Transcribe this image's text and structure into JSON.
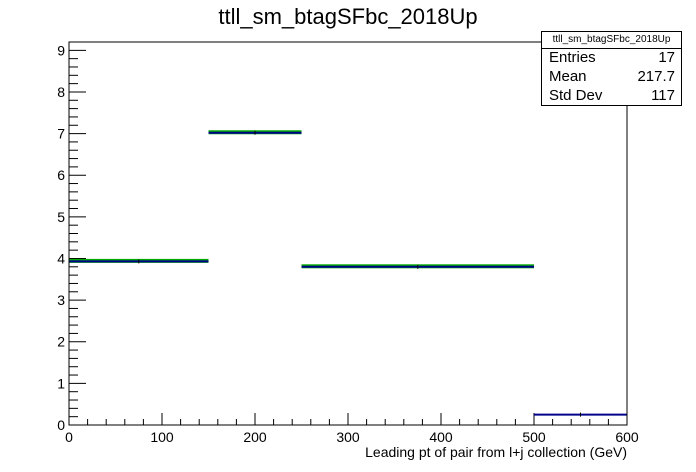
{
  "chart_data": {
    "type": "histogram",
    "title": "ttll_sm_btagSFbc_2018Up",
    "xlabel": "Leading pt of pair from l+j collection (GeV)",
    "ylabel": "",
    "xlim": [
      0,
      600
    ],
    "ylim": [
      0,
      9.2
    ],
    "x_ticks": [
      0,
      100,
      200,
      300,
      400,
      500,
      600
    ],
    "y_ticks": [
      0,
      1,
      2,
      3,
      4,
      5,
      6,
      7,
      8,
      9
    ],
    "bins": [
      {
        "low": 0,
        "high": 150,
        "value": 3.93
      },
      {
        "low": 150,
        "high": 250,
        "value": 7.02
      },
      {
        "low": 250,
        "high": 500,
        "value": 3.8
      },
      {
        "low": 500,
        "high": 600,
        "value": 0.25
      }
    ],
    "series_colors": {
      "main": "#00008b",
      "band": "#00aa00"
    },
    "stats": {
      "name": "ttll_sm_btagSFbc_2018Up",
      "rows": [
        {
          "label": "Entries",
          "value": "17"
        },
        {
          "label": "Mean",
          "value": "217.7"
        },
        {
          "label": "Std Dev",
          "value": "117"
        }
      ]
    }
  }
}
